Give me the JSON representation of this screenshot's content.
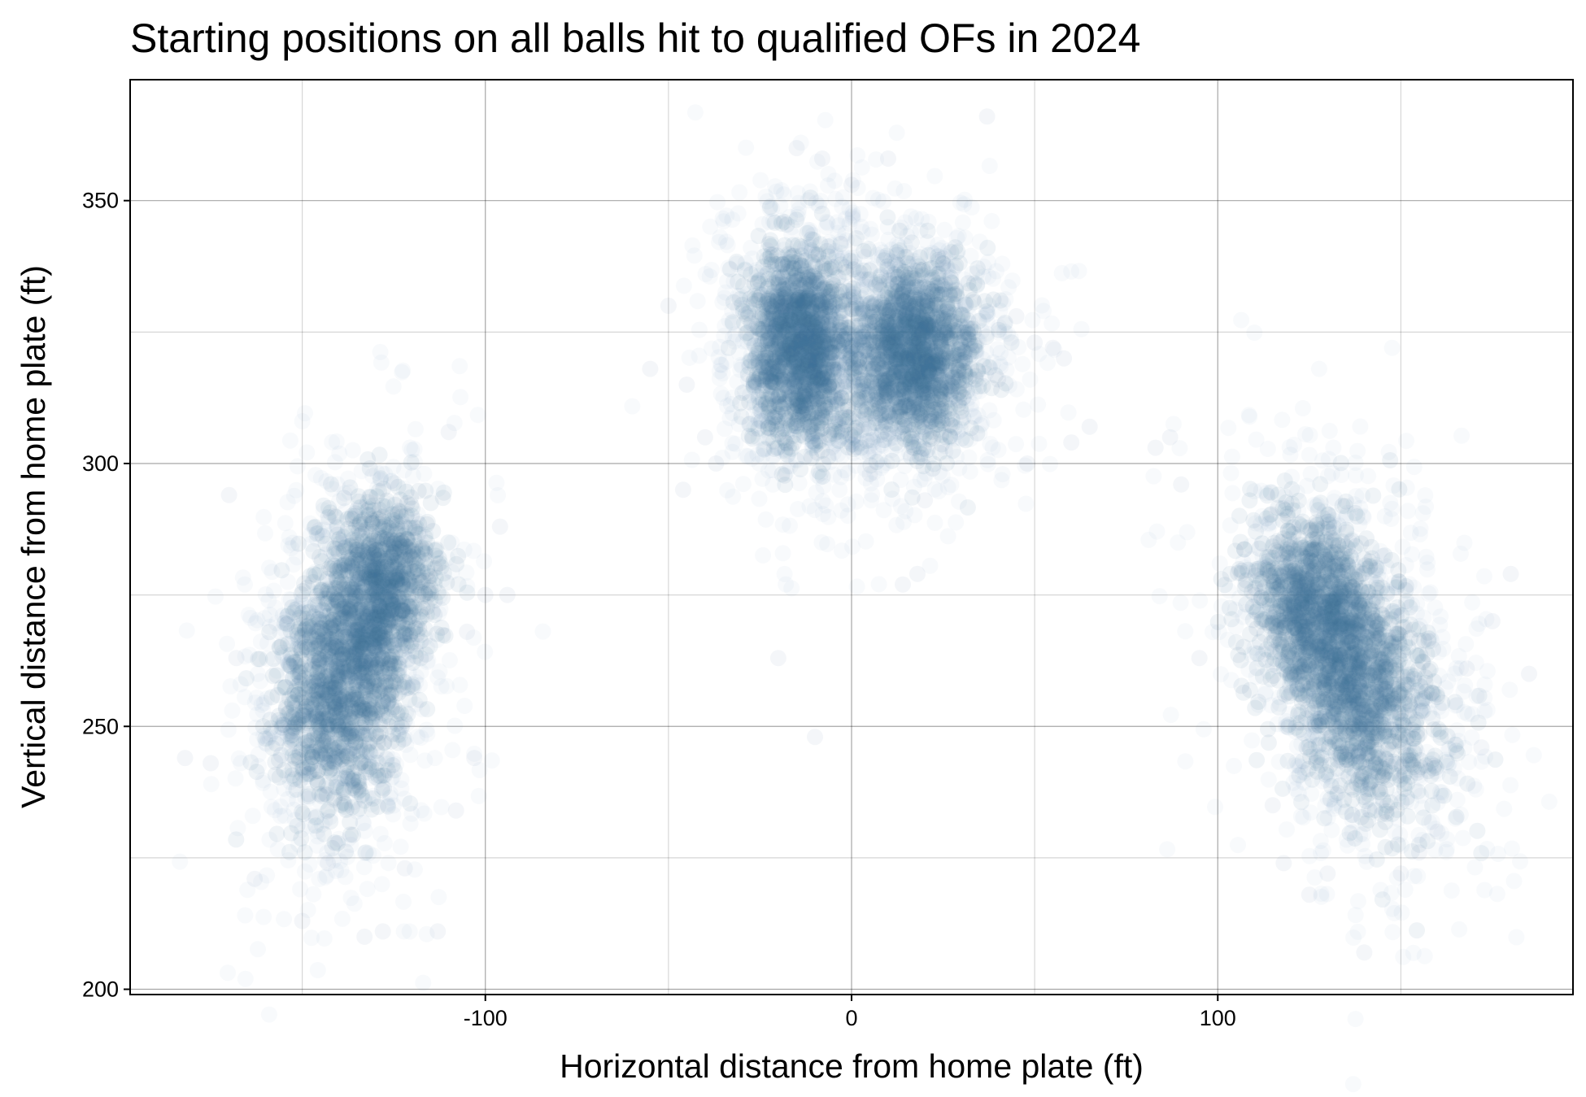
{
  "chart_data": {
    "type": "scatter",
    "title": "Starting positions on all balls hit to qualified OFs in 2024",
    "xlabel": "Horizontal distance from home plate (ft)",
    "ylabel": "Vertical distance from home plate (ft)",
    "xlim": [
      -197,
      197
    ],
    "ylim": [
      199,
      373
    ],
    "x_ticks": [
      -100,
      0,
      100
    ],
    "y_ticks": [
      200,
      250,
      300,
      350
    ],
    "x_tick_labels": [
      "-100",
      "0",
      "100"
    ],
    "y_tick_labels": [
      "200",
      "250",
      "300",
      "350"
    ],
    "x_minor_gridlines": [
      -150,
      -50,
      50,
      150
    ],
    "y_minor_gridlines": [
      225,
      275,
      325
    ],
    "grid": true,
    "legend": "none",
    "point_color": "#3f6e9c",
    "clusters": [
      {
        "position": "LF",
        "center": [
          -138,
          260
        ],
        "spread": [
          8,
          13
        ],
        "rotation_deg": -15,
        "sub_center": [
          -127,
          278
        ]
      },
      {
        "position": "CF",
        "center": [
          -14,
          322
        ],
        "spread": [
          7,
          9
        ],
        "rotation_deg": 0
      },
      {
        "position": "CF",
        "center": [
          17,
          321
        ],
        "spread": [
          8,
          8
        ],
        "rotation_deg": 0
      },
      {
        "position": "RF",
        "center": [
          137,
          260
        ],
        "spread": [
          9,
          14
        ],
        "rotation_deg": 30,
        "sub_center": [
          125,
          273
        ]
      }
    ],
    "outlier_points": [
      [
        -182,
        244
      ],
      [
        -175,
        243
      ],
      [
        -170,
        294
      ],
      [
        -168,
        263
      ],
      [
        -163,
        221
      ],
      [
        -150,
        213
      ],
      [
        -143,
        224
      ],
      [
        -133,
        210
      ],
      [
        -128,
        211
      ],
      [
        -122,
        223
      ],
      [
        -113,
        211
      ],
      [
        -110,
        306
      ],
      [
        -108,
        234
      ],
      [
        -105,
        268
      ],
      [
        -103,
        244
      ],
      [
        -100,
        275
      ],
      [
        -96,
        288
      ],
      [
        -94,
        275
      ],
      [
        -55,
        318
      ],
      [
        -50,
        330
      ],
      [
        -46,
        295
      ],
      [
        -45,
        315
      ],
      [
        -40,
        305
      ],
      [
        -37,
        300
      ],
      [
        -20,
        263
      ],
      [
        -18,
        330
      ],
      [
        -15,
        360
      ],
      [
        -10,
        248
      ],
      [
        -8,
        358
      ],
      [
        0,
        353
      ],
      [
        5,
        298
      ],
      [
        10,
        358
      ],
      [
        14,
        277
      ],
      [
        18,
        279
      ],
      [
        20,
        293
      ],
      [
        25,
        339
      ],
      [
        37,
        366
      ],
      [
        40,
        316
      ],
      [
        45,
        328
      ],
      [
        48,
        300
      ],
      [
        50,
        323
      ],
      [
        55,
        322
      ],
      [
        58,
        320
      ],
      [
        60,
        304
      ],
      [
        65,
        307
      ],
      [
        83,
        303
      ],
      [
        87,
        305
      ],
      [
        90,
        296
      ],
      [
        95,
        263
      ],
      [
        110,
        275
      ],
      [
        115,
        235
      ],
      [
        118,
        224
      ],
      [
        125,
        218
      ],
      [
        130,
        222
      ],
      [
        140,
        207
      ],
      [
        150,
        222
      ],
      [
        155,
        226
      ],
      [
        160,
        230
      ],
      [
        168,
        261
      ],
      [
        172,
        246
      ],
      [
        175,
        270
      ],
      [
        180,
        279
      ],
      [
        185,
        260
      ]
    ]
  }
}
